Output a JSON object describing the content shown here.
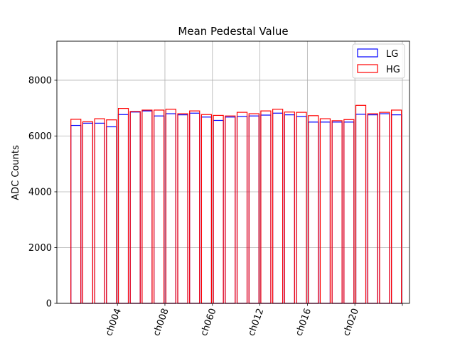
{
  "chart_data": {
    "type": "bar",
    "title": "Mean Pedestal Value",
    "xlabel": "",
    "ylabel": "ADC Counts",
    "ylim": [
      0,
      9400
    ],
    "yticks": [
      0,
      2000,
      4000,
      6000,
      8000
    ],
    "grid": true,
    "legend_position": "top-right",
    "x_tick_labels": [
      "ch004",
      "ch008",
      "ch060",
      "ch012",
      "ch016",
      "ch020"
    ],
    "x_tick_bar_index": [
      4,
      8,
      12,
      16,
      20,
      24
    ],
    "series": [
      {
        "name": "LG",
        "color": "#0000ff",
        "values": [
          6380,
          6460,
          6460,
          6330,
          6770,
          6860,
          6900,
          6720,
          6800,
          6760,
          6820,
          6680,
          6560,
          6680,
          6700,
          6720,
          6750,
          6820,
          6760,
          6700,
          6500,
          6500,
          6500,
          6500,
          6780,
          6760,
          6800,
          6760
        ]
      },
      {
        "name": "HG",
        "color": "#ff0000",
        "values": [
          6600,
          6510,
          6620,
          6580,
          6990,
          6880,
          6930,
          6930,
          6960,
          6800,
          6900,
          6770,
          6740,
          6720,
          6850,
          6800,
          6900,
          6960,
          6860,
          6850,
          6730,
          6620,
          6550,
          6590,
          7100,
          6800,
          6850,
          6930
        ]
      }
    ]
  }
}
